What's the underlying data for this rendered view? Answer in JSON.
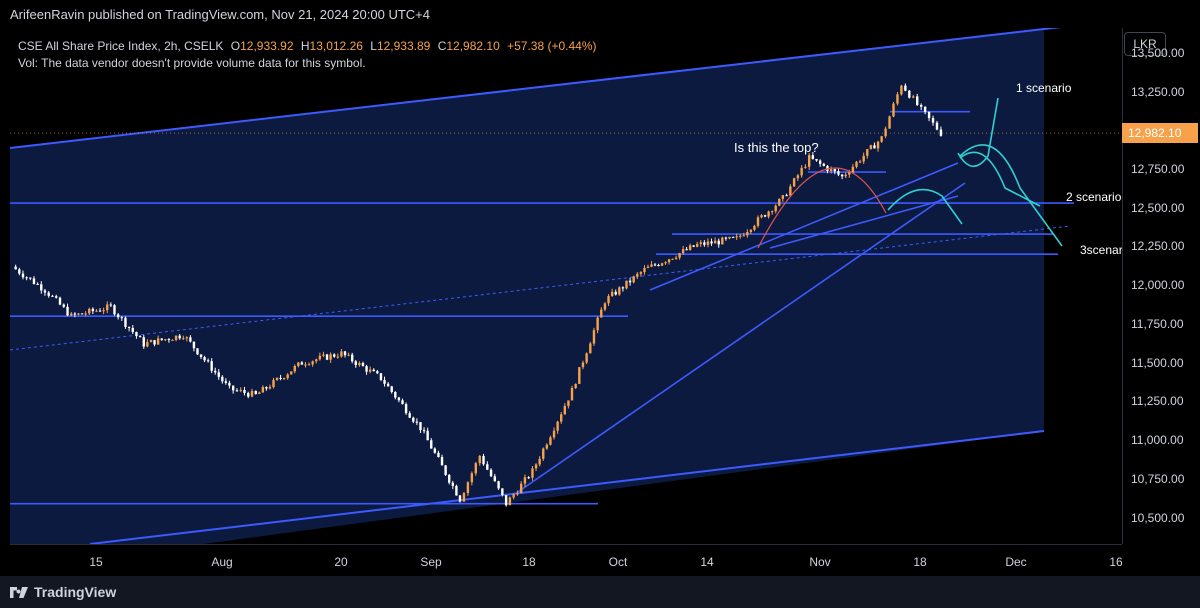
{
  "publisher_line": "ArifeenRavin published on TradingView.com, Nov 21, 2024 20:00 UTC+4",
  "legend": {
    "symbol": "CSE All Share Price Index, 2h, CSELK",
    "o_label": "O",
    "o": "12,933.92",
    "h_label": "H",
    "h": "13,012.26",
    "l_label": "L",
    "l": "12,933.89",
    "c_label": "C",
    "c": "12,982.10",
    "change": "+57.38 (+0.44%)",
    "vol": "Vol: The data vendor doesn't provide volume data for this symbol."
  },
  "currency": "LKR",
  "price_ticks": [
    "13,500.00",
    "13,250.00",
    "12,750.00",
    "12,500.00",
    "12,250.00",
    "12,000.00",
    "11,750.00",
    "11,500.00",
    "11,250.00",
    "11,000.00",
    "10,750.00",
    "10,500.00"
  ],
  "last_price": "12,982.10",
  "time_ticks": [
    "15",
    "Aug",
    "20",
    "Sep",
    "18",
    "Oct",
    "14",
    "Nov",
    "18",
    "Dec",
    "16"
  ],
  "annotations": {
    "question": "Is this the top?",
    "s1": "1 scenario",
    "s2": "2 scenario",
    "s3": "3scenar"
  },
  "footer_brand": "TradingView",
  "colors": {
    "up": "#f7a24b",
    "down": "#ffffff",
    "channel": "#3d5afe",
    "zone": "#0c1a3f",
    "curve_red": "#d9534f",
    "curve_cyan": "#2fd0d0"
  },
  "chart_data": {
    "type": "candlestick",
    "title": "CSE All Share Price Index, 2h, CSELK",
    "ylim": [
      10330,
      13660
    ],
    "price_axis_ticks": [
      10500,
      10750,
      11000,
      11250,
      11500,
      11750,
      12000,
      12250,
      12500,
      12750,
      13000,
      13250,
      13500
    ],
    "last_close": 12982.1,
    "ohlc_last": {
      "open": 12933.92,
      "high": 13012.26,
      "low": 12933.89,
      "close": 12982.1,
      "change": 57.38,
      "change_pct": 0.44
    },
    "close_path": [
      {
        "x": "Jul 03",
        "y": 12120
      },
      {
        "x": "Jul 08",
        "y": 11970
      },
      {
        "x": "Jul 12",
        "y": 11800
      },
      {
        "x": "Jul 18",
        "y": 11860
      },
      {
        "x": "Jul 23",
        "y": 11620
      },
      {
        "x": "Jul 29",
        "y": 11680
      },
      {
        "x": "Aug 05",
        "y": 11330
      },
      {
        "x": "Aug 09",
        "y": 11290
      },
      {
        "x": "Aug 16",
        "y": 11500
      },
      {
        "x": "Aug 22",
        "y": 11560
      },
      {
        "x": "Aug 28",
        "y": 11400
      },
      {
        "x": "Sep 03",
        "y": 11080
      },
      {
        "x": "Sep 09",
        "y": 10620
      },
      {
        "x": "Sep 12",
        "y": 10900
      },
      {
        "x": "Sep 16",
        "y": 10590
      },
      {
        "x": "Sep 20",
        "y": 10800
      },
      {
        "x": "Sep 26",
        "y": 11320
      },
      {
        "x": "Oct 01",
        "y": 11900
      },
      {
        "x": "Oct 07",
        "y": 12100
      },
      {
        "x": "Oct 15",
        "y": 12260
      },
      {
        "x": "Oct 21",
        "y": 12300
      },
      {
        "x": "Oct 28",
        "y": 12560
      },
      {
        "x": "Nov 01",
        "y": 12820
      },
      {
        "x": "Nov 06",
        "y": 12700
      },
      {
        "x": "Nov 12",
        "y": 12950
      },
      {
        "x": "Nov 15",
        "y": 13300
      },
      {
        "x": "Nov 18",
        "y": 13130
      },
      {
        "x": "Nov 21",
        "y": 12982
      }
    ],
    "horizontal_levels": [
      11800,
      12200,
      12330,
      12530,
      12730,
      13120,
      10590
    ],
    "scenario_targets": [
      13420,
      12580,
      12310,
      12250
    ]
  }
}
